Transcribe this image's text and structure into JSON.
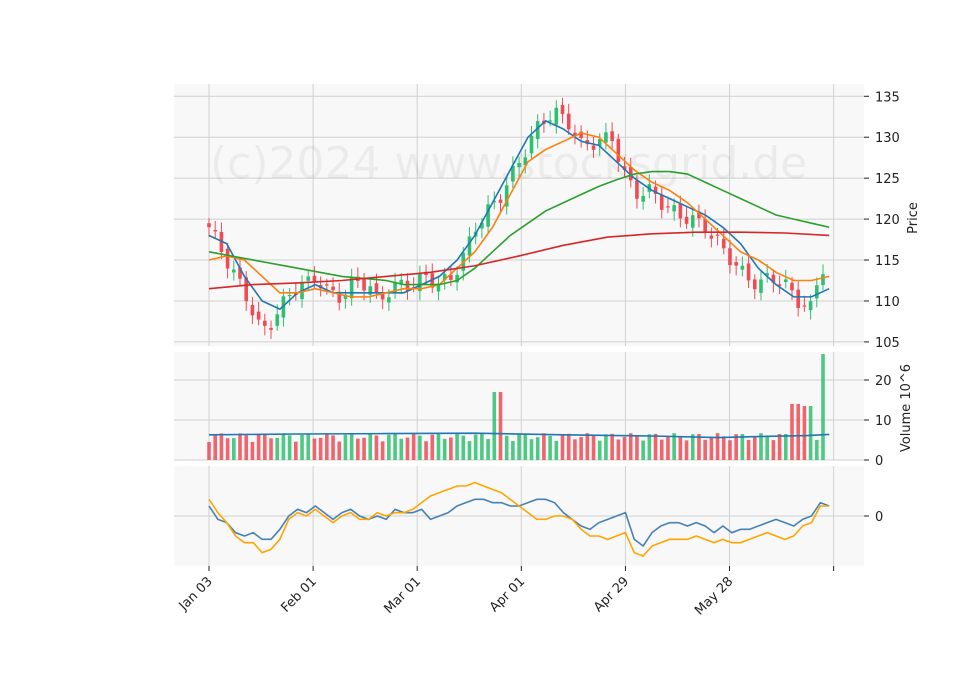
{
  "chart_data": {
    "type": "candlestick",
    "watermark": "(c)2024 www.stocksgrid.de",
    "x_tick_labels": [
      "Jan 03",
      "Feb 01",
      "Mar 01",
      "Apr 01",
      "Apr 29",
      "May 28"
    ],
    "price_panel": {
      "ylabel": "Price",
      "ylim": [
        104.5,
        136.5
      ],
      "yticks": [
        105,
        110,
        115,
        120,
        125,
        130,
        135
      ],
      "up_color": "#2fbf71",
      "down_color": "#ef4b55",
      "ma_lines": [
        {
          "color": "#1f77b4",
          "points": [
            [
              0,
              118
            ],
            [
              4,
              117
            ],
            [
              8,
              113
            ],
            [
              12,
              110
            ],
            [
              16,
              109
            ],
            [
              20,
              111
            ],
            [
              24,
              112
            ],
            [
              28,
              111
            ],
            [
              32,
              111
            ],
            [
              36,
              111
            ],
            [
              40,
              111
            ],
            [
              44,
              111
            ],
            [
              48,
              112
            ],
            [
              52,
              113
            ],
            [
              56,
              115
            ],
            [
              60,
              118
            ],
            [
              64,
              122
            ],
            [
              68,
              126
            ],
            [
              72,
              130
            ],
            [
              76,
              132
            ],
            [
              80,
              131
            ],
            [
              84,
              129.5
            ],
            [
              88,
              129
            ],
            [
              92,
              127
            ],
            [
              96,
              125
            ],
            [
              100,
              123.5
            ],
            [
              104,
              122.5
            ],
            [
              108,
              121.5
            ],
            [
              112,
              120.5
            ],
            [
              116,
              119
            ],
            [
              120,
              117
            ],
            [
              124,
              114
            ],
            [
              128,
              112
            ],
            [
              132,
              110.5
            ],
            [
              136,
              110.5
            ],
            [
              140,
              111.5
            ]
          ]
        },
        {
          "color": "#ff7f0e",
          "points": [
            [
              0,
              115
            ],
            [
              4,
              115.5
            ],
            [
              8,
              115
            ],
            [
              12,
              113
            ],
            [
              16,
              111
            ],
            [
              20,
              111
            ],
            [
              24,
              111.5
            ],
            [
              28,
              111
            ],
            [
              32,
              110.5
            ],
            [
              36,
              110.5
            ],
            [
              40,
              111
            ],
            [
              44,
              111.5
            ],
            [
              48,
              111.5
            ],
            [
              52,
              112
            ],
            [
              56,
              114
            ],
            [
              60,
              116
            ],
            [
              64,
              119
            ],
            [
              68,
              123
            ],
            [
              72,
              127
            ],
            [
              76,
              128.5
            ],
            [
              80,
              129.5
            ],
            [
              84,
              130.5
            ],
            [
              88,
              130
            ],
            [
              92,
              128
            ],
            [
              96,
              126
            ],
            [
              100,
              124.5
            ],
            [
              104,
              123.5
            ],
            [
              108,
              122
            ],
            [
              112,
              120
            ],
            [
              116,
              118
            ],
            [
              120,
              116
            ],
            [
              124,
              115
            ],
            [
              128,
              113.5
            ],
            [
              132,
              112.5
            ],
            [
              136,
              112.5
            ],
            [
              140,
              113
            ]
          ]
        },
        {
          "color": "#2ca02c",
          "points": [
            [
              0,
              116
            ],
            [
              10,
              115
            ],
            [
              20,
              114
            ],
            [
              30,
              113
            ],
            [
              40,
              112.5
            ],
            [
              44,
              112
            ],
            [
              48,
              112
            ],
            [
              52,
              112
            ],
            [
              56,
              112.5
            ],
            [
              60,
              114
            ],
            [
              64,
              116
            ],
            [
              68,
              118
            ],
            [
              72,
              119.5
            ],
            [
              76,
              121
            ],
            [
              80,
              122
            ],
            [
              84,
              123
            ],
            [
              88,
              124
            ],
            [
              92,
              124.8
            ],
            [
              96,
              125.5
            ],
            [
              100,
              125.8
            ],
            [
              104,
              125.8
            ],
            [
              108,
              125.5
            ],
            [
              112,
              124.5
            ],
            [
              116,
              123.5
            ],
            [
              120,
              122.5
            ],
            [
              124,
              121.5
            ],
            [
              128,
              120.5
            ],
            [
              132,
              120
            ],
            [
              136,
              119.5
            ],
            [
              140,
              119
            ]
          ]
        },
        {
          "color": "#d62728",
          "points": [
            [
              0,
              111.5
            ],
            [
              10,
              112
            ],
            [
              20,
              112.2
            ],
            [
              30,
              112.5
            ],
            [
              40,
              113
            ],
            [
              50,
              113.5
            ],
            [
              60,
              114.3
            ],
            [
              70,
              115.5
            ],
            [
              80,
              116.8
            ],
            [
              90,
              117.8
            ],
            [
              100,
              118.2
            ],
            [
              110,
              118.4
            ],
            [
              120,
              118.4
            ],
            [
              130,
              118.3
            ],
            [
              140,
              118
            ]
          ]
        }
      ]
    },
    "volume_panel": {
      "ylabel": "Volume  10^6",
      "ylim": [
        0,
        27
      ],
      "yticks": [
        0,
        10,
        20
      ],
      "avg_color": "#1f77b4"
    },
    "indicator_panel": {
      "ylim": [
        -15,
        15
      ],
      "yticks": [
        0
      ],
      "series": [
        {
          "color": "#4682b4",
          "points": [
            [
              0,
              3
            ],
            [
              2,
              -1
            ],
            [
              4,
              -2
            ],
            [
              6,
              -5
            ],
            [
              8,
              -6
            ],
            [
              10,
              -5
            ],
            [
              12,
              -7
            ],
            [
              14,
              -7
            ],
            [
              16,
              -4
            ],
            [
              18,
              0
            ],
            [
              20,
              2
            ],
            [
              22,
              1
            ],
            [
              24,
              3
            ],
            [
              26,
              1
            ],
            [
              28,
              -1
            ],
            [
              30,
              1
            ],
            [
              32,
              2
            ],
            [
              34,
              0
            ],
            [
              36,
              -1
            ],
            [
              38,
              0
            ],
            [
              40,
              -1
            ],
            [
              42,
              2
            ],
            [
              44,
              1
            ],
            [
              46,
              1
            ],
            [
              48,
              2
            ],
            [
              50,
              -1
            ],
            [
              52,
              0
            ],
            [
              54,
              1
            ],
            [
              56,
              3
            ],
            [
              58,
              4
            ],
            [
              60,
              5
            ],
            [
              62,
              5
            ],
            [
              64,
              4
            ],
            [
              66,
              4
            ],
            [
              68,
              3
            ],
            [
              70,
              3
            ],
            [
              72,
              4
            ],
            [
              74,
              5
            ],
            [
              76,
              5
            ],
            [
              78,
              4
            ],
            [
              80,
              1
            ],
            [
              82,
              -1
            ],
            [
              84,
              -3
            ],
            [
              86,
              -4
            ],
            [
              88,
              -2
            ],
            [
              90,
              -1
            ],
            [
              92,
              0
            ],
            [
              94,
              1
            ],
            [
              96,
              -7
            ],
            [
              98,
              -9
            ],
            [
              100,
              -5
            ],
            [
              102,
              -3
            ],
            [
              104,
              -2
            ],
            [
              106,
              -2
            ],
            [
              108,
              -3
            ],
            [
              110,
              -2
            ],
            [
              112,
              -3
            ],
            [
              114,
              -5
            ],
            [
              116,
              -3
            ],
            [
              118,
              -5
            ],
            [
              120,
              -4
            ],
            [
              122,
              -4
            ],
            [
              124,
              -3
            ],
            [
              126,
              -2
            ],
            [
              128,
              -1
            ],
            [
              130,
              -2
            ],
            [
              132,
              -3
            ],
            [
              134,
              -1
            ],
            [
              136,
              0
            ],
            [
              138,
              4
            ],
            [
              140,
              3
            ]
          ]
        },
        {
          "color": "#ffa500",
          "points": [
            [
              0,
              5
            ],
            [
              2,
              1
            ],
            [
              4,
              -2
            ],
            [
              6,
              -6
            ],
            [
              8,
              -8
            ],
            [
              10,
              -8
            ],
            [
              12,
              -11
            ],
            [
              14,
              -10
            ],
            [
              16,
              -7
            ],
            [
              18,
              -1
            ],
            [
              20,
              1
            ],
            [
              22,
              0
            ],
            [
              24,
              2
            ],
            [
              26,
              0
            ],
            [
              28,
              -2
            ],
            [
              30,
              0
            ],
            [
              32,
              1
            ],
            [
              34,
              -1
            ],
            [
              36,
              -1
            ],
            [
              38,
              1
            ],
            [
              40,
              0
            ],
            [
              42,
              1
            ],
            [
              44,
              1
            ],
            [
              46,
              2
            ],
            [
              48,
              4
            ],
            [
              50,
              6
            ],
            [
              52,
              7
            ],
            [
              54,
              8
            ],
            [
              56,
              9
            ],
            [
              58,
              9
            ],
            [
              60,
              10
            ],
            [
              62,
              9
            ],
            [
              64,
              8
            ],
            [
              66,
              7
            ],
            [
              68,
              5
            ],
            [
              70,
              3
            ],
            [
              72,
              1
            ],
            [
              74,
              -1
            ],
            [
              76,
              -1
            ],
            [
              78,
              0
            ],
            [
              80,
              0
            ],
            [
              82,
              -1
            ],
            [
              84,
              -4
            ],
            [
              86,
              -6
            ],
            [
              88,
              -6
            ],
            [
              90,
              -7
            ],
            [
              92,
              -6
            ],
            [
              94,
              -5
            ],
            [
              96,
              -11
            ],
            [
              98,
              -12
            ],
            [
              100,
              -9
            ],
            [
              102,
              -8
            ],
            [
              104,
              -7
            ],
            [
              106,
              -7
            ],
            [
              108,
              -7
            ],
            [
              110,
              -6
            ],
            [
              112,
              -7
            ],
            [
              114,
              -8
            ],
            [
              116,
              -7
            ],
            [
              118,
              -8
            ],
            [
              120,
              -8
            ],
            [
              122,
              -7
            ],
            [
              124,
              -6
            ],
            [
              126,
              -5
            ],
            [
              128,
              -6
            ],
            [
              130,
              -7
            ],
            [
              132,
              -6
            ],
            [
              134,
              -3
            ],
            [
              136,
              -2
            ],
            [
              138,
              3
            ],
            [
              140,
              3
            ]
          ]
        }
      ]
    }
  }
}
